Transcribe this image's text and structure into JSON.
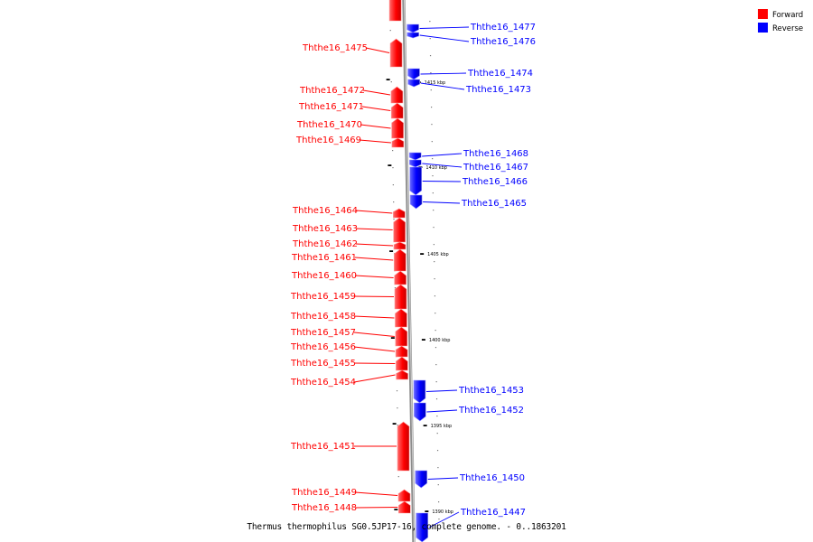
{
  "legend": {
    "forward": {
      "label": "Forward",
      "color": "#ff0000"
    },
    "reverse": {
      "label": "Reverse",
      "color": "#0000ff"
    }
  },
  "caption": "Thermus thermophilus SG0.5JP17-16, complete genome. - 0..1863201",
  "ticks": [
    "1415 kbp",
    "1410 kbp",
    "1405 kbp",
    "1400 kbp",
    "1395 kbp",
    "1390 kbp"
  ],
  "genes": {
    "forward": [
      "Ththe16_1475",
      "Ththe16_1472",
      "Ththe16_1471",
      "Ththe16_1470",
      "Ththe16_1469",
      "Ththe16_1464",
      "Ththe16_1463",
      "Ththe16_1462",
      "Ththe16_1461",
      "Ththe16_1460",
      "Ththe16_1459",
      "Ththe16_1458",
      "Ththe16_1457",
      "Ththe16_1456",
      "Ththe16_1455",
      "Ththe16_1454",
      "Ththe16_1451",
      "Ththe16_1449",
      "Ththe16_1448"
    ],
    "reverse": [
      "Ththe16_1477",
      "Ththe16_1476",
      "Ththe16_1474",
      "Ththe16_1473",
      "Ththe16_1468",
      "Ththe16_1467",
      "Ththe16_1466",
      "Ththe16_1465",
      "Ththe16_1453",
      "Ththe16_1452",
      "Ththe16_1450",
      "Ththe16_1447"
    ]
  }
}
